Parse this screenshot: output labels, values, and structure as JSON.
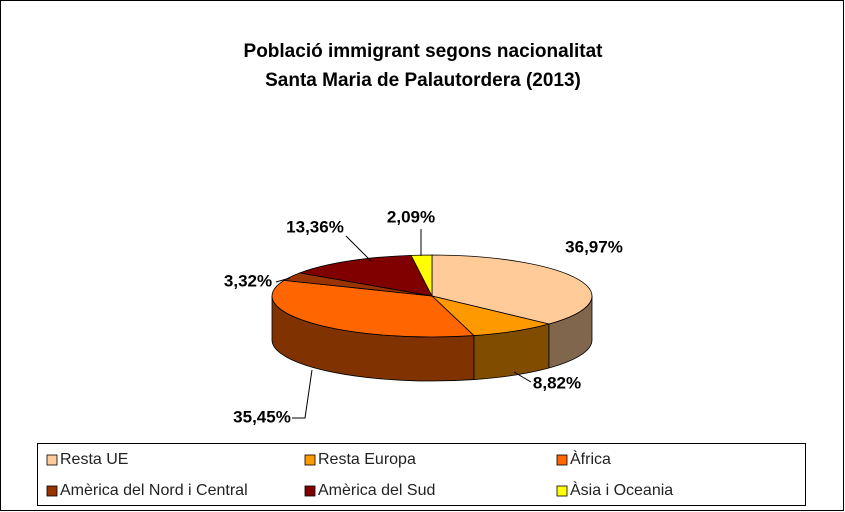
{
  "chart_data": {
    "type": "pie3d",
    "title": [
      "Població immigrant segons nacionalitat",
      "Santa Maria de Palautordera (2013)"
    ],
    "categories": [
      "Resta UE",
      "Resta Europa",
      "Àfrica",
      "Amèrica del Nord i Central",
      "Amèrica del Sud",
      "Àsia i Oceania"
    ],
    "values": [
      36.97,
      8.82,
      35.45,
      3.32,
      13.36,
      2.09
    ],
    "value_labels": [
      "36,97%",
      "8,82%",
      "35,45%",
      "3,32%",
      "13,36%",
      "2,09%"
    ],
    "colors": [
      "#FFCC99",
      "#FF9900",
      "#FF6600",
      "#993300",
      "#800000",
      "#FFFF00"
    ],
    "legend": "bottom"
  }
}
